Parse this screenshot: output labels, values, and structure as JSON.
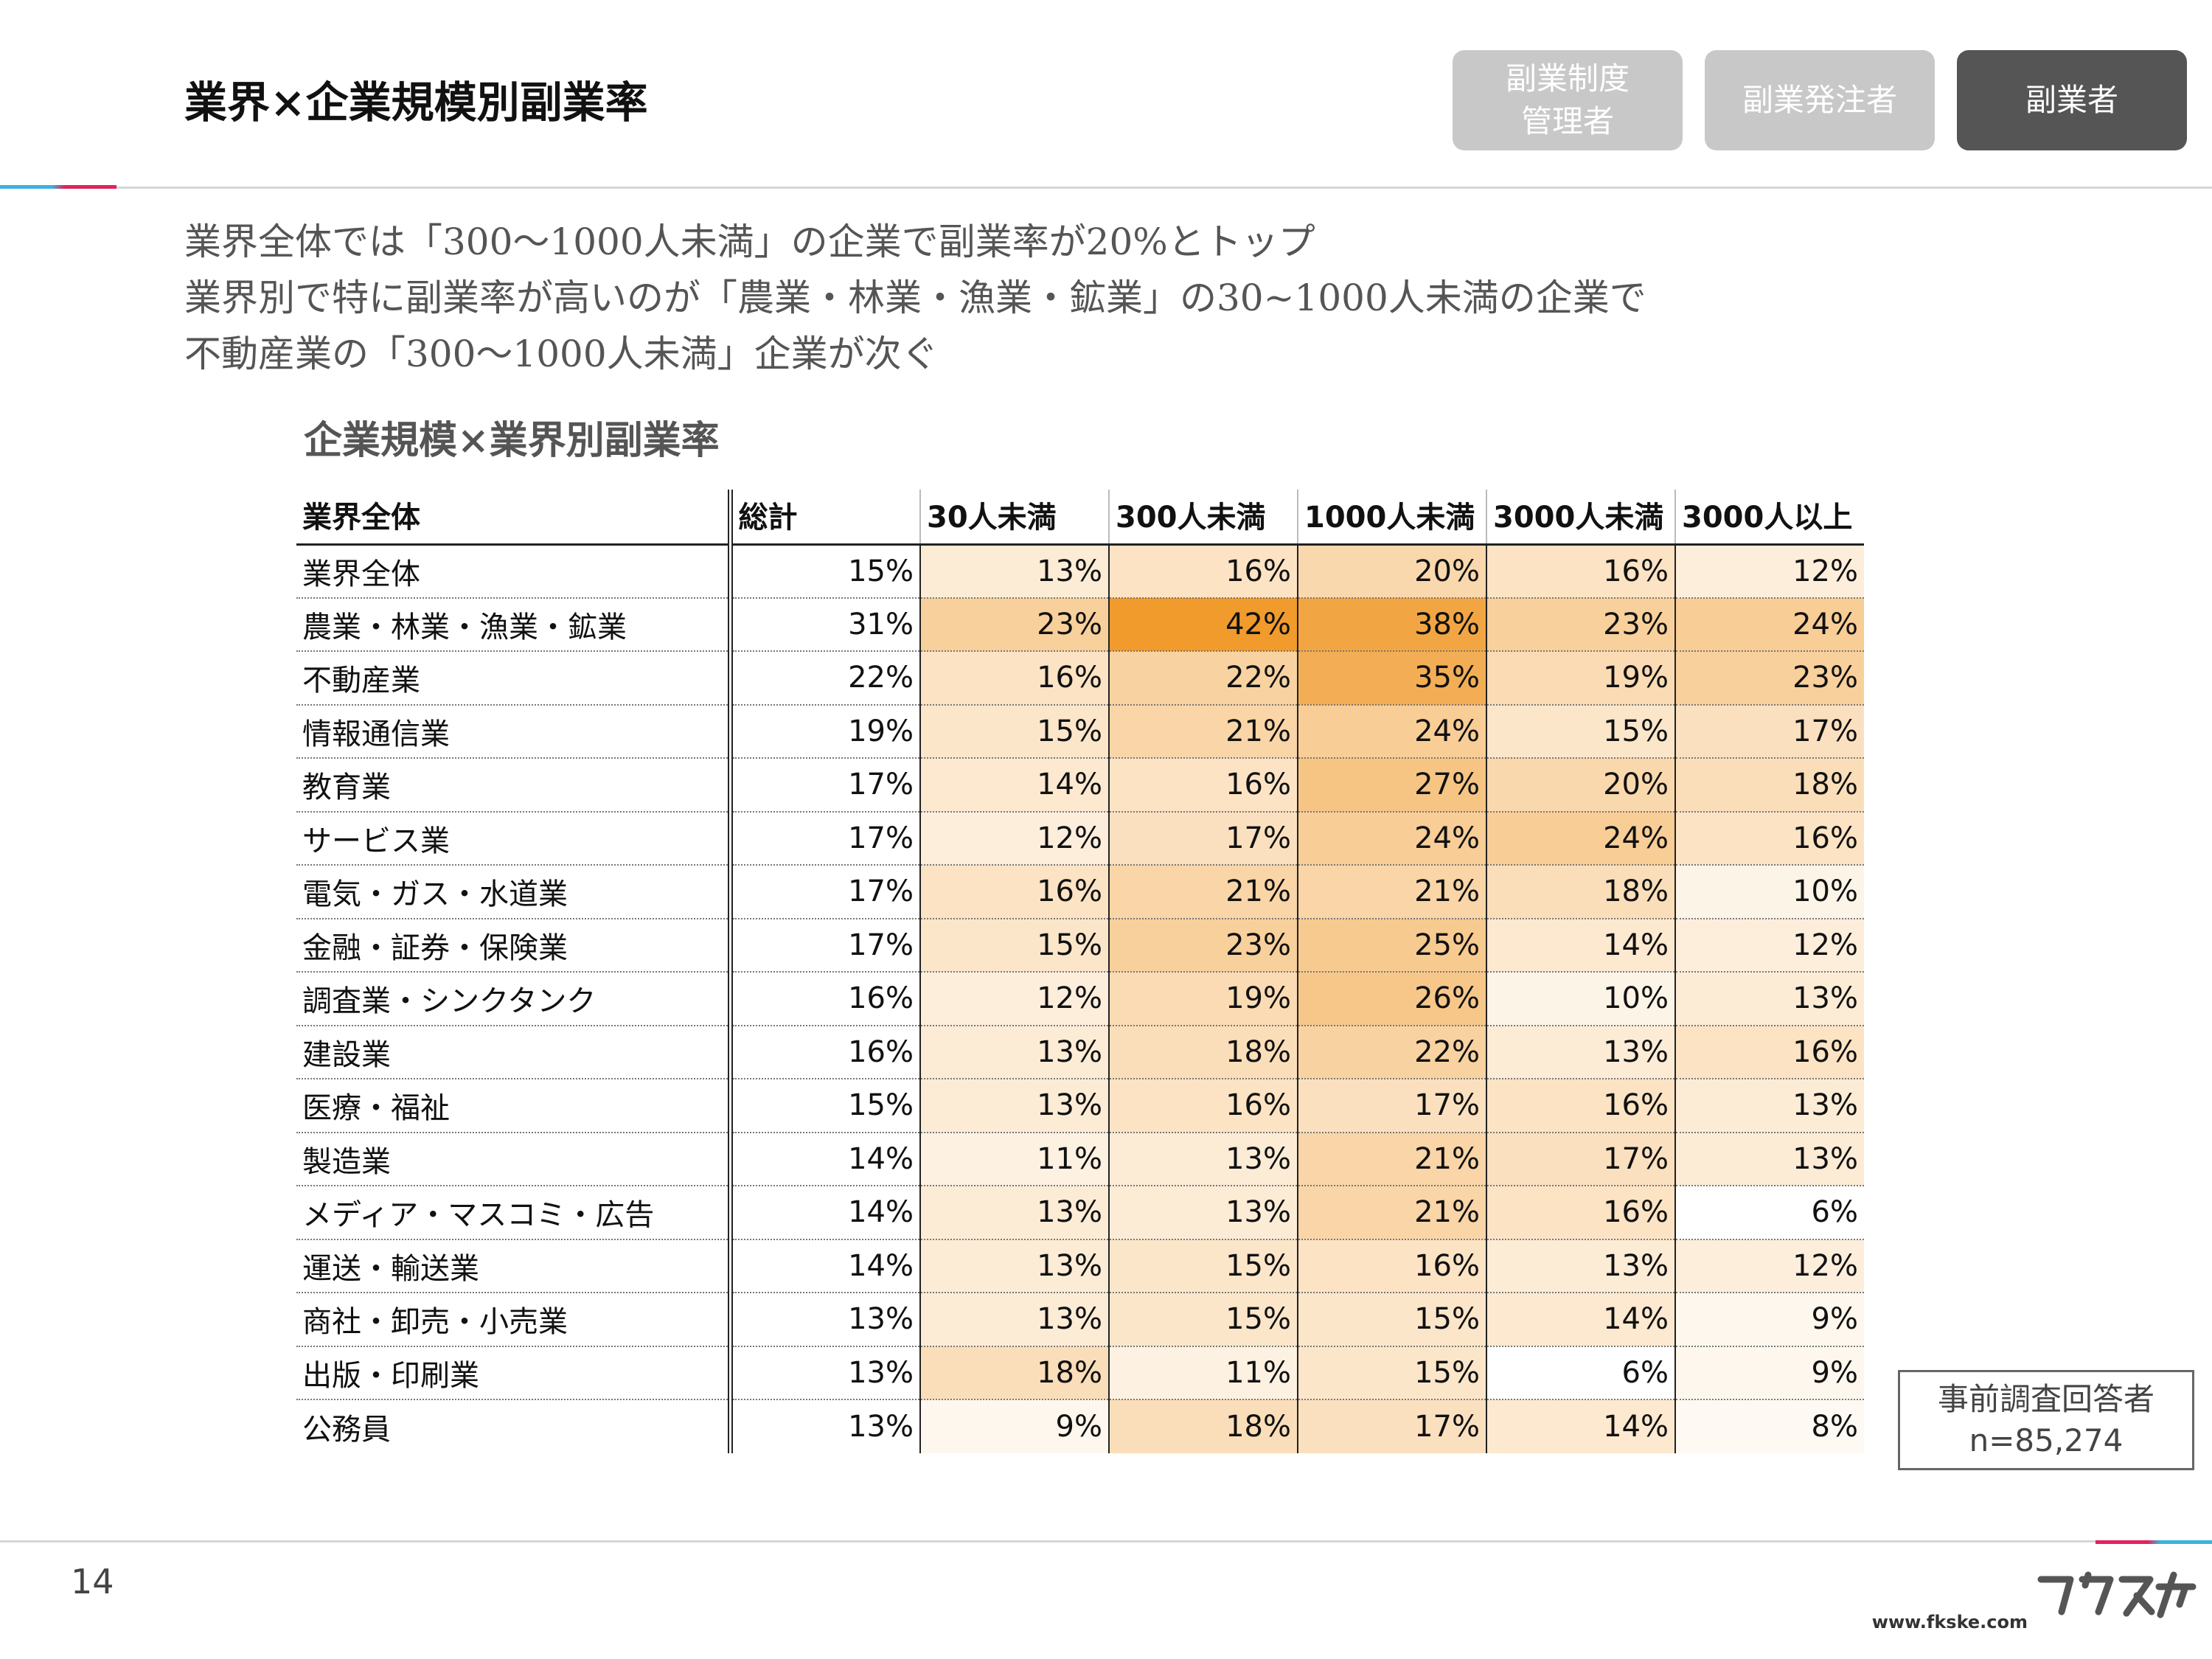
{
  "page": {
    "title": "業界×企業規模別副業率",
    "tabs": [
      {
        "label": "副業制度\n管理者",
        "active": false
      },
      {
        "label": "副業発注者",
        "active": false
      },
      {
        "label": "副業者",
        "active": true
      }
    ],
    "summary": [
      "業界全体では「300〜1000人未満」の企業で副業率が20%とトップ",
      "業界別で特に副業率が高いのが「農業・林業・漁業・鉱業」の30~1000人未満の企業で",
      "不動産業の「300〜1000人未満」企業が次ぐ"
    ],
    "table_title": "企業規模×業界別副業率",
    "respondents": {
      "line1": "事前調査回答者",
      "line2": "n=85,274"
    },
    "page_number": "14",
    "brand_logo_text": "フクスケ",
    "url": "www.fkske.com"
  },
  "colors": {
    "heat_low": "#ffffff",
    "heat_high": "#f09b2c",
    "tab_inactive": "#c8c8c8",
    "tab_active": "#555555",
    "accent_blue": "#3bb0e0",
    "accent_pink": "#e0245e"
  },
  "chart_data": {
    "type": "table",
    "title": "企業規模×業界別副業率",
    "columns": [
      "業界全体",
      "総計",
      "30人未満",
      "300人未満",
      "1000人未満",
      "3000人未満",
      "3000人以上"
    ],
    "rows": [
      {
        "industry": "業界全体",
        "values": [
          "15%",
          "13%",
          "16%",
          "20%",
          "16%",
          "12%"
        ]
      },
      {
        "industry": "農業・林業・漁業・鉱業",
        "values": [
          "31%",
          "23%",
          "42%",
          "38%",
          "23%",
          "24%"
        ]
      },
      {
        "industry": "不動産業",
        "values": [
          "22%",
          "16%",
          "22%",
          "35%",
          "19%",
          "23%"
        ]
      },
      {
        "industry": "情報通信業",
        "values": [
          "19%",
          "15%",
          "21%",
          "24%",
          "15%",
          "17%"
        ]
      },
      {
        "industry": "教育業",
        "values": [
          "17%",
          "14%",
          "16%",
          "27%",
          "20%",
          "18%"
        ]
      },
      {
        "industry": "サービス業",
        "values": [
          "17%",
          "12%",
          "17%",
          "24%",
          "24%",
          "16%"
        ]
      },
      {
        "industry": "電気・ガス・水道業",
        "values": [
          "17%",
          "16%",
          "21%",
          "21%",
          "18%",
          "10%"
        ]
      },
      {
        "industry": "金融・証券・保険業",
        "values": [
          "17%",
          "15%",
          "23%",
          "25%",
          "14%",
          "12%"
        ]
      },
      {
        "industry": "調査業・シンクタンク",
        "values": [
          "16%",
          "12%",
          "19%",
          "26%",
          "10%",
          "13%"
        ]
      },
      {
        "industry": "建設業",
        "values": [
          "16%",
          "13%",
          "18%",
          "22%",
          "13%",
          "16%"
        ]
      },
      {
        "industry": "医療・福祉",
        "values": [
          "15%",
          "13%",
          "16%",
          "17%",
          "16%",
          "13%"
        ]
      },
      {
        "industry": "製造業",
        "values": [
          "14%",
          "11%",
          "13%",
          "21%",
          "17%",
          "13%"
        ]
      },
      {
        "industry": "メディア・マスコミ・広告",
        "values": [
          "14%",
          "13%",
          "13%",
          "21%",
          "16%",
          "6%"
        ]
      },
      {
        "industry": "運送・輸送業",
        "values": [
          "14%",
          "13%",
          "15%",
          "16%",
          "13%",
          "12%"
        ]
      },
      {
        "industry": "商社・卸売・小売業",
        "values": [
          "13%",
          "13%",
          "15%",
          "15%",
          "14%",
          "9%"
        ]
      },
      {
        "industry": "出版・印刷業",
        "values": [
          "13%",
          "18%",
          "11%",
          "15%",
          "6%",
          "9%"
        ]
      },
      {
        "industry": "公務員",
        "values": [
          "13%",
          "9%",
          "18%",
          "17%",
          "14%",
          "8%"
        ]
      }
    ]
  }
}
